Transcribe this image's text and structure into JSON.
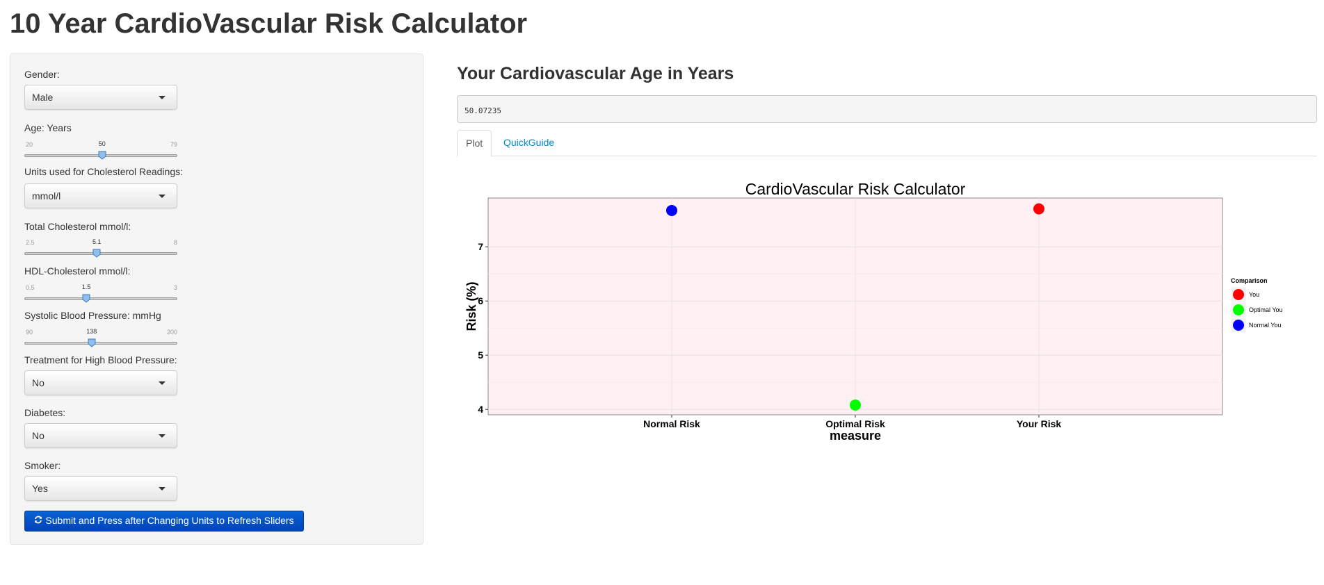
{
  "app": {
    "title": "10 Year CardioVascular Risk Calculator"
  },
  "sidebar": {
    "gender": {
      "label": "Gender:",
      "value": "Male"
    },
    "age": {
      "label": "Age: Years",
      "min": "20",
      "max": "79",
      "value": "50",
      "fraction": 0.5085
    },
    "units": {
      "label": "Units used for Cholesterol Readings:",
      "value": "mmol/l"
    },
    "total_chol": {
      "label": "Total Cholesterol mmol/l:",
      "min": "2.5",
      "max": "8",
      "value": "5.1",
      "fraction": 0.4727
    },
    "hdl": {
      "label": "HDL-Cholesterol mmol/l:",
      "min": "0.5",
      "max": "3",
      "value": "1.5",
      "fraction": 0.4
    },
    "sbp": {
      "label": "Systolic Blood Pressure: mmHg",
      "min": "90",
      "max": "200",
      "value": "138",
      "fraction": 0.4364
    },
    "treatment": {
      "label": "Treatment for High Blood Pressure:",
      "value": "No"
    },
    "diabetes": {
      "label": "Diabetes:",
      "value": "No"
    },
    "smoker": {
      "label": "Smoker:",
      "value": "Yes"
    },
    "submit_label": "Submit and Press after Changing Units to Refresh Sliders",
    "submit_icon": "refresh-icon"
  },
  "main": {
    "heading": "Your Cardiovascular Age in Years",
    "output": "50.07235",
    "tabs": [
      {
        "label": "Plot",
        "active": true
      },
      {
        "label": "QuickGuide",
        "active": false
      }
    ]
  },
  "chart_data": {
    "type": "scatter",
    "title": "CardioVascular Risk Calculator",
    "xlabel": "measure",
    "ylabel": "Risk (%)",
    "categories": [
      "Normal Risk",
      "Optimal Risk",
      "Your Risk"
    ],
    "ylim": [
      3.9,
      7.9
    ],
    "yticks": [
      4,
      5,
      6,
      7
    ],
    "grid": true,
    "panel_color": "#fff0f3",
    "legend": {
      "title": "Comparison",
      "placement": "right",
      "entries": [
        {
          "name": "You",
          "color": "#ff0000"
        },
        {
          "name": "Optimal You",
          "color": "#00ff00"
        },
        {
          "name": "Normal You",
          "color": "#0000ff"
        }
      ]
    },
    "points": [
      {
        "category": "Normal Risk",
        "y": 7.67,
        "series": "Normal You",
        "color": "#0000ff"
      },
      {
        "category": "Optimal Risk",
        "y": 4.08,
        "series": "Optimal You",
        "color": "#00ff00"
      },
      {
        "category": "Your Risk",
        "y": 7.7,
        "series": "You",
        "color": "#ff0000"
      }
    ]
  }
}
